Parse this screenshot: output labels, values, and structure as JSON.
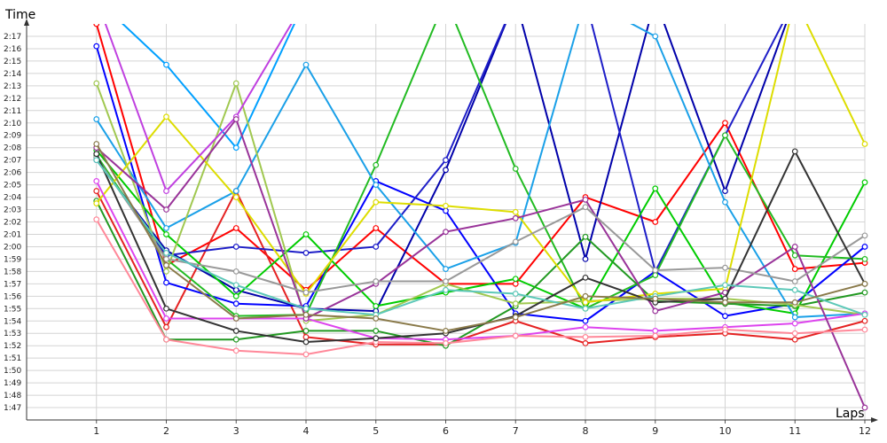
{
  "chart_data": {
    "type": "line",
    "xlabel": "Laps",
    "ylabel": "Time",
    "x": [
      1,
      2,
      3,
      4,
      5,
      6,
      7,
      8,
      9,
      10,
      11,
      12
    ],
    "xlim": [
      0,
      12
    ],
    "ylim": [
      "1:46",
      "2:18"
    ],
    "y_ticks": [
      "1:47",
      "1:48",
      "1:49",
      "1:50",
      "1:51",
      "1:52",
      "1:53",
      "1:54",
      "1:55",
      "1:56",
      "1:57",
      "1:58",
      "1:59",
      "2:00",
      "2:01",
      "2:02",
      "2:03",
      "2:04",
      "2:05",
      "2:06",
      "2:07",
      "2:08",
      "2:09",
      "2:10",
      "2:11",
      "2:12",
      "2:13",
      "2:14",
      "2:15",
      "2:16",
      "2:17"
    ],
    "grid": true,
    "legend": "none",
    "series": [
      {
        "color": "#ff0000",
        "values": [
          "2:18",
          "1:58.5",
          "2:01.5",
          "1:56.5",
          "2:01.5",
          "1:57",
          "1:57",
          "2:04",
          "2:02",
          "2:10",
          "1:58.2",
          "1:58.7"
        ]
      },
      {
        "color": "#e52222",
        "values": [
          "2:04.5",
          "1:53.5",
          "2:04.5",
          "1:52.7",
          "1:52.1",
          "1:52.1",
          "1:54",
          "1:52.2",
          "1:52.7",
          "1:53",
          "1:52.5",
          "1:54"
        ]
      },
      {
        "color": "#0000ff",
        "values": [
          "2:16.2",
          "1:57.1",
          "1:55.4",
          "1:55.2",
          "2:05.3",
          "2:02.9",
          "1:54.6",
          "1:54",
          "1:58",
          "1:54.4",
          "1:55.4",
          "2:00"
        ]
      },
      {
        "color": "#0000aa",
        "values": [
          "2:07",
          "1:59.7",
          "1:56.5",
          "1:55",
          "1:54.8",
          "2:06.2",
          "2:20",
          "1:59",
          "2:20",
          "2:04.5",
          "2:20",
          "2:20"
        ]
      },
      {
        "color": "#1e1ec8",
        "values": [
          "2:07.2",
          "1:59.3",
          "2:00",
          "1:59.5",
          "2:00",
          "2:07",
          "2:20",
          "2:20",
          "1:58",
          "2:09",
          "2:20",
          "2:20"
        ]
      },
      {
        "color": "#00cc00",
        "values": [
          "2:07.8",
          "2:01",
          "1:56",
          "2:01",
          "1:55.2",
          "1:56.3",
          "1:57.4",
          "1:55",
          "2:04.7",
          "1:55.5",
          "1:54.6",
          "2:05.2"
        ]
      },
      {
        "color": "#22bb22",
        "values": [
          "2:07.4",
          "1:59",
          "1:54.4",
          "1:54.5",
          "2:06.6",
          "2:20",
          "2:06.3",
          "1:55",
          "1:57.7",
          "2:09",
          "1:59.3",
          "1:59"
        ]
      },
      {
        "color": "#229922",
        "values": [
          "2:03.7",
          "1:52.5",
          "1:52.5",
          "1:53.2",
          "1:53.2",
          "1:52",
          "1:55.2",
          "2:00.8",
          "1:55.6",
          "1:55.4",
          "1:55.2",
          "1:56.3"
        ]
      },
      {
        "color": "#1aa0e8",
        "values": [
          "2:10.3",
          "2:01.5",
          "2:04.5",
          "2:14.7",
          "2:05",
          "1:58.2",
          "2:00.3",
          "2:20",
          "2:17",
          "2:03.6",
          "1:54.3",
          "1:54.6"
        ]
      },
      {
        "color": "#00a0ff",
        "values": [
          "2:20",
          "2:14.7",
          "2:08",
          "2:20",
          "2:20",
          "2:20",
          "2:20",
          "2:20",
          "2:20",
          "2:20",
          "2:20",
          "2:20"
        ]
      },
      {
        "color": "#a0c850",
        "values": [
          "2:13.2",
          "1:58",
          "2:13.2",
          "1:54",
          "1:54.5",
          "1:57",
          "1:55.4",
          "1:55.6",
          "1:55.8",
          "1:55.8",
          "1:55.3",
          "1:54.5"
        ]
      },
      {
        "color": "#dddd00",
        "values": [
          "2:03.5",
          "2:10.5",
          "2:04",
          "1:56.2",
          "2:03.6",
          "2:03.3",
          "2:02.8",
          "1:55.5",
          "1:56.2",
          "1:56.6",
          "2:20",
          "2:08.3"
        ]
      },
      {
        "color": "#c040e0",
        "values": [
          "2:20",
          "2:04.5",
          "2:10.5",
          "2:20",
          "2:20",
          "2:20",
          "2:20",
          "2:20",
          "2:20",
          "2:20",
          "2:20",
          "2:20"
        ]
      },
      {
        "color": "#dd44ee",
        "values": [
          "2:05.3",
          "1:54.2",
          "1:54.2",
          "1:54.2",
          "1:52.6",
          "1:52.5",
          "1:52.8",
          "1:53.5",
          "1:53.2",
          "1:53.5",
          "1:53.8",
          "1:54.6"
        ]
      },
      {
        "color": "#993399",
        "values": [
          "2:08",
          "2:03",
          "2:10.3",
          "1:54.2",
          "1:57",
          "2:01.2",
          "2:02.3",
          "2:03.8",
          "1:54.8",
          "1:56.3",
          "2:00",
          "1:47"
        ]
      },
      {
        "color": "#ff8899",
        "values": [
          "2:02.2",
          "1:52.5",
          "1:51.6",
          "1:51.3",
          "1:52.3",
          "1:52.2",
          "1:52.8",
          "1:52.7",
          "1:52.8",
          "1:53.3",
          "1:53",
          "1:53.3"
        ]
      },
      {
        "color": "#999999",
        "values": [
          "2:07.2",
          "1:59",
          "1:58",
          "1:56.3",
          "1:57.2",
          "1:57.2",
          "2:00.4",
          "2:03.2",
          "1:58.1",
          "1:58.3",
          "1:57.2",
          "2:00.9"
        ]
      },
      {
        "color": "#333333",
        "values": [
          "2:07.5",
          "1:55",
          "1:53.2",
          "1:52.3",
          "1:52.6",
          "1:53",
          "1:54.4",
          "1:57.5",
          "1:55.5",
          "1:55.8",
          "2:07.7",
          "1:57"
        ]
      },
      {
        "color": "#5cc8b8",
        "values": [
          "2:07",
          "1:59.5",
          "1:56.9",
          "1:55",
          "1:54.5",
          "1:56.5",
          "1:56.2",
          "1:55",
          "1:56",
          "1:56.9",
          "1:56.5",
          "1:54.5"
        ]
      },
      {
        "color": "#8a7a4a",
        "values": [
          "2:08.3",
          "1:58.5",
          "1:54.2",
          "1:54.5",
          "1:54.2",
          "1:53.2",
          "1:54.3",
          "1:56",
          "1:55.8",
          "1:55.5",
          "1:55.5",
          "1:57"
        ]
      }
    ]
  }
}
